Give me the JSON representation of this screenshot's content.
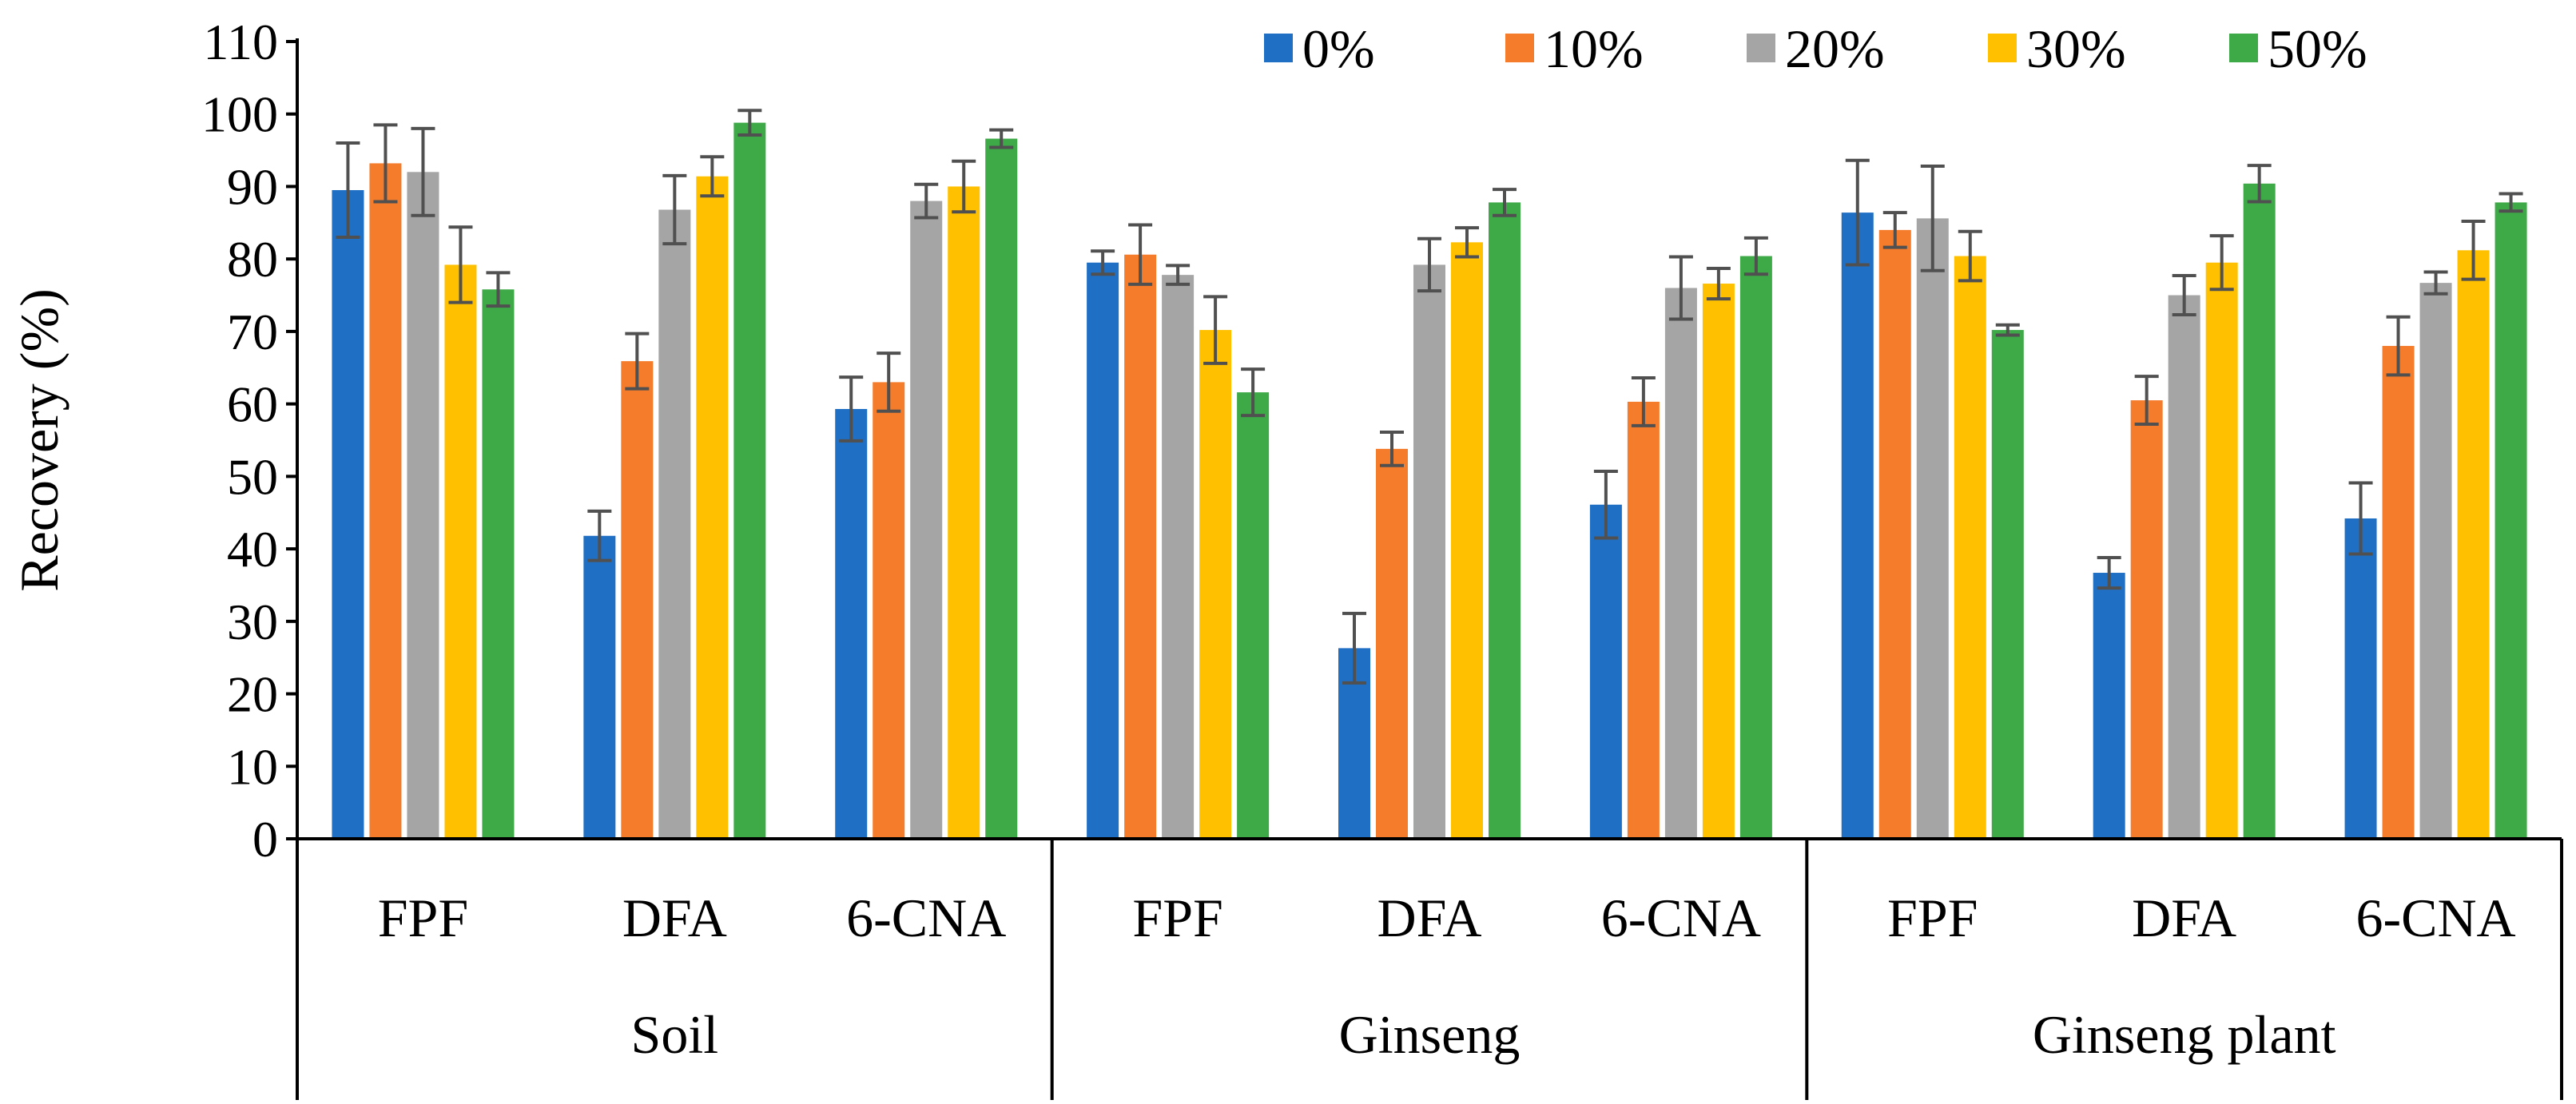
{
  "chart_data": {
    "type": "bar",
    "title": "",
    "xlabel": "",
    "ylabel": "Recovery (%)",
    "ylim": [
      0,
      110
    ],
    "yticks": [
      0,
      10,
      20,
      30,
      40,
      50,
      60,
      70,
      80,
      90,
      100,
      110
    ],
    "grid": false,
    "legend_position": "top-right",
    "groups": [
      "Soil",
      "Ginseng",
      "Ginseng plant"
    ],
    "categories": [
      "FPF",
      "DFA",
      "6-CNA",
      "FPF",
      "DFA",
      "6-CNA",
      "FPF",
      "DFA",
      "6-CNA"
    ],
    "series": [
      {
        "name": "0%",
        "color": "#1f6fc5",
        "values": [
          89.5,
          41.8,
          59.3,
          79.5,
          26.3,
          46.1,
          86.4,
          36.7,
          44.2
        ],
        "errors": [
          6.5,
          3.4,
          4.4,
          1.6,
          4.8,
          4.6,
          7.2,
          2.1,
          4.9
        ]
      },
      {
        "name": "10%",
        "color": "#f47c2b",
        "values": [
          93.2,
          65.9,
          63.0,
          80.6,
          53.8,
          60.3,
          84.0,
          60.5,
          68.0
        ],
        "errors": [
          5.3,
          3.8,
          4.0,
          4.1,
          2.3,
          3.3,
          2.4,
          3.3,
          4.0
        ]
      },
      {
        "name": "20%",
        "color": "#a5a5a5",
        "values": [
          92.0,
          86.8,
          88.0,
          77.8,
          79.2,
          76.0,
          85.6,
          75.0,
          76.7
        ],
        "errors": [
          6.0,
          4.7,
          2.3,
          1.3,
          3.6,
          4.3,
          7.2,
          2.7,
          1.5
        ]
      },
      {
        "name": "30%",
        "color": "#ffc000",
        "values": [
          79.2,
          91.4,
          90.0,
          70.2,
          82.3,
          76.6,
          80.4,
          79.5,
          81.2
        ],
        "errors": [
          5.2,
          2.7,
          3.5,
          4.6,
          2.0,
          2.1,
          3.4,
          3.7,
          4.0
        ]
      },
      {
        "name": "50%",
        "color": "#3daa47",
        "values": [
          75.8,
          98.8,
          96.6,
          61.6,
          87.8,
          80.4,
          70.2,
          90.4,
          87.8
        ],
        "errors": [
          2.3,
          1.7,
          1.2,
          3.2,
          1.8,
          2.5,
          0.7,
          2.5,
          1.2
        ]
      }
    ]
  }
}
